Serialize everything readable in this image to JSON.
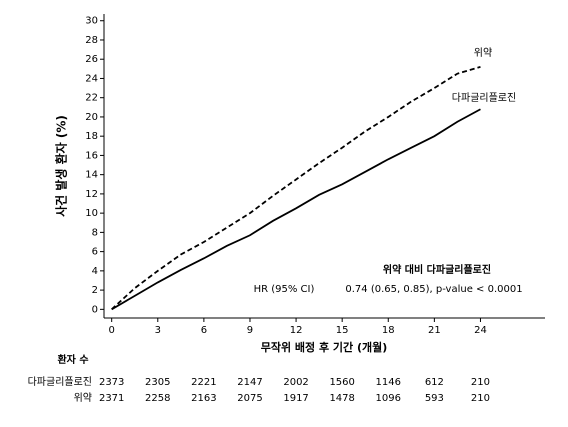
{
  "chart_data": {
    "type": "line",
    "y_label": "사건 발생 환자 (%)",
    "x_label": "무작위 배정 후 기간 (개월)",
    "x": [
      0,
      1.5,
      3,
      4.5,
      6,
      7.5,
      9,
      10.5,
      12,
      13.5,
      15,
      16.5,
      18,
      19.5,
      21,
      22.5,
      24
    ],
    "series": [
      {
        "name": "위약",
        "color": "#000000",
        "dash": "dashed",
        "values": [
          0,
          2.2,
          4,
          5.7,
          7,
          8.5,
          10,
          11.8,
          13.5,
          15.2,
          16.8,
          18.5,
          20,
          21.6,
          23,
          24.5,
          25.2
        ]
      },
      {
        "name": "다파글리플로진",
        "color": "#000000",
        "dash": "solid",
        "values": [
          0,
          1.4,
          2.8,
          4.1,
          5.3,
          6.6,
          7.7,
          9.2,
          10.5,
          11.9,
          13,
          14.3,
          15.6,
          16.8,
          18,
          19.5,
          20.8
        ]
      }
    ],
    "xlim": [
      -0.5,
      28.2
    ],
    "ylim": [
      -0.9,
      30.7
    ],
    "xticks": [
      0,
      3,
      6,
      9,
      12,
      15,
      18,
      21,
      24
    ],
    "yticks": [
      0,
      2,
      4,
      6,
      8,
      10,
      12,
      14,
      16,
      18,
      20,
      22,
      24,
      26,
      28,
      30
    ],
    "annotation": {
      "title": "위약 대비 다파글리플로진",
      "label": "HR (95% CI)",
      "value": "0.74 (0.65, 0.85), p-value < 0.0001"
    },
    "risk_table": {
      "title": "환자 수",
      "rows": [
        {
          "name": "다파글리플로진",
          "values": [
            "2373",
            "2305",
            "2221",
            "2147",
            "2002",
            "1560",
            "1146",
            "612",
            "210"
          ]
        },
        {
          "name": "위약",
          "values": [
            "2371",
            "2258",
            "2163",
            "2075",
            "1917",
            "1478",
            "1096",
            "593",
            "210"
          ]
        }
      ]
    }
  }
}
